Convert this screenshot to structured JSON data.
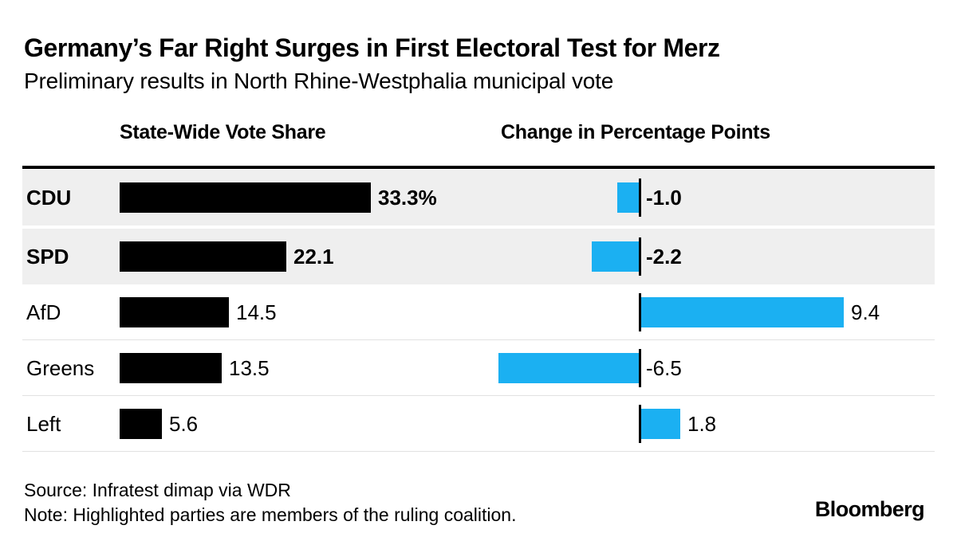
{
  "title": "Germany’s Far Right Surges in First Electoral Test for Merz",
  "subtitle": "Preliminary results in North Rhine-Westphalia municipal vote",
  "columns": {
    "vote_share": "State-Wide Vote Share",
    "change": "Change in Percentage Points"
  },
  "colors": {
    "bar_black": "#000000",
    "bar_blue": "#1bb0f2",
    "highlight_row": "#efefef",
    "separator": "#e2e2e2"
  },
  "rows": [
    {
      "party": "CDU",
      "share": 33.3,
      "share_label": "33.3%",
      "change": -1.0,
      "change_label": "-1.0",
      "highlighted": true
    },
    {
      "party": "SPD",
      "share": 22.1,
      "share_label": "22.1",
      "change": -2.2,
      "change_label": "-2.2",
      "highlighted": true
    },
    {
      "party": "AfD",
      "share": 14.5,
      "share_label": "14.5",
      "change": 9.4,
      "change_label": "9.4",
      "highlighted": false
    },
    {
      "party": "Greens",
      "share": 13.5,
      "share_label": "13.5",
      "change": -6.5,
      "change_label": "-6.5",
      "highlighted": false
    },
    {
      "party": "Left",
      "share": 5.6,
      "share_label": "5.6",
      "change": 1.8,
      "change_label": "1.8",
      "highlighted": false
    }
  ],
  "chart_data": {
    "type": "bar",
    "orientation": "horizontal",
    "title": "Germany’s Far Right Surges in First Electoral Test for Merz",
    "subtitle": "Preliminary results in North Rhine-Westphalia municipal vote",
    "categories": [
      "CDU",
      "SPD",
      "AfD",
      "Greens",
      "Left"
    ],
    "series": [
      {
        "name": "State-Wide Vote Share",
        "unit": "%",
        "color": "#000000",
        "values": [
          33.3,
          22.1,
          14.5,
          13.5,
          5.6
        ]
      },
      {
        "name": "Change in Percentage Points",
        "unit": "pp",
        "color": "#1bb0f2",
        "values": [
          -1.0,
          -2.2,
          9.4,
          -6.5,
          1.8
        ]
      }
    ],
    "value_labels": {
      "share": [
        "33.3%",
        "22.1",
        "14.5",
        "13.5",
        "5.6"
      ],
      "change": [
        "-1.0",
        "-2.2",
        "9.4",
        "-6.5",
        "1.8"
      ]
    },
    "highlighted_categories": [
      "CDU",
      "SPD"
    ],
    "grid": "off",
    "legend": "none",
    "zero_baseline_column2": true
  },
  "footer": {
    "source": "Source: Infratest dimap via WDR",
    "note": "Note: Highlighted parties are members of the ruling coalition.",
    "logo": "Bloomberg"
  }
}
